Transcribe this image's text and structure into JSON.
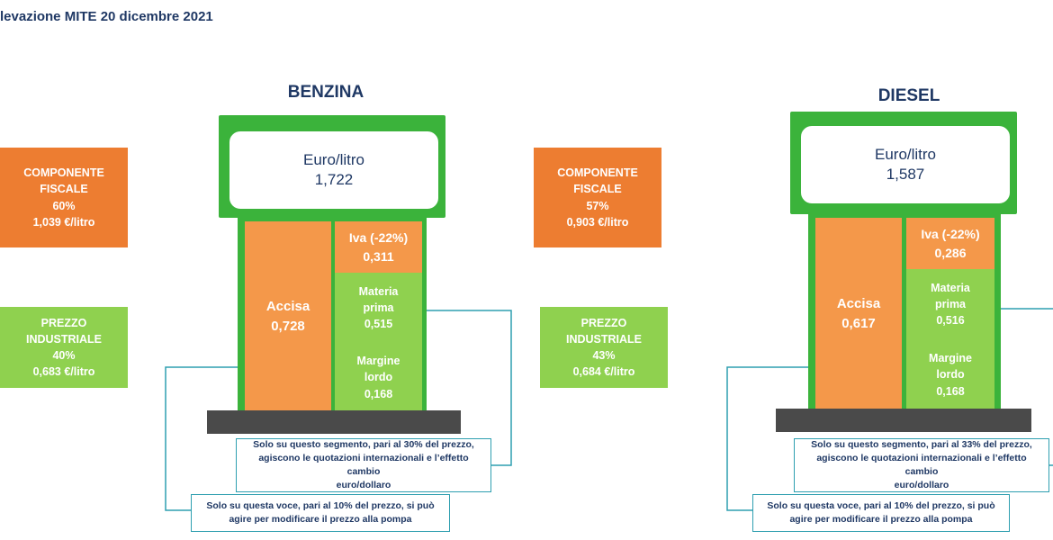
{
  "header": "levazione MITE 20 dicembre 2021",
  "benzina": {
    "title": "BENZINA",
    "componente_fiscale": {
      "line1": "COMPONENTE",
      "line2": "FISCALE",
      "percent": "60%",
      "value": "1,039 €/litro"
    },
    "prezzo_industriale": {
      "line1": "PREZZO",
      "line2": "INDUSTRIALE",
      "percent": "40%",
      "value": "0,683 €/litro"
    },
    "screen": {
      "unit": "Euro/litro",
      "price": "1,722"
    },
    "accisa": {
      "label": "Accisa",
      "value": "0,728"
    },
    "iva": {
      "label": "Iva (-22%)",
      "value": "0,311"
    },
    "materia_prima": {
      "line1": "Materia",
      "line2": "prima",
      "value": "0,515"
    },
    "margine_lordo": {
      "line1": "Margine",
      "line2": "lordo",
      "value": "0,168"
    },
    "note_quotazioni": {
      "line1": "Solo su questo segmento, pari al 30% del prezzo,",
      "line2": "agiscono le quotazioni internazionali e l’effetto cambio",
      "line3": "euro/dollaro"
    },
    "note_margine": {
      "line1": "Solo su questa voce, pari al 10% del prezzo, si può",
      "line2": "agire per modificare il prezzo alla pompa"
    }
  },
  "diesel": {
    "title": "DIESEL",
    "componente_fiscale": {
      "line1": "COMPONENTE",
      "line2": "FISCALE",
      "percent": "57%",
      "value": "0,903 €/litro"
    },
    "prezzo_industriale": {
      "line1": "PREZZO",
      "line2": "INDUSTRIALE",
      "percent": "43%",
      "value": "0,684 €/litro"
    },
    "screen": {
      "unit": "Euro/litro",
      "price": "1,587"
    },
    "accisa": {
      "label": "Accisa",
      "value": "0,617"
    },
    "iva": {
      "label": "Iva (-22%)",
      "value": "0,286"
    },
    "materia_prima": {
      "line1": "Materia",
      "line2": "prima",
      "value": "0,516"
    },
    "margine_lordo": {
      "line1": "Margine",
      "line2": "lordo",
      "value": "0,168"
    },
    "note_quotazioni": {
      "line1": "Solo su questo segmento, pari al 33% del prezzo,",
      "line2": "agiscono le quotazioni internazionali e l’effetto cambio",
      "line3": "euro/dollaro"
    },
    "note_margine": {
      "line1": "Solo su questa voce, pari al 10% del prezzo, si può",
      "line2": "agire per modificare il prezzo alla pompa"
    }
  },
  "colors": {
    "orange": "#ed7d31",
    "green": "#8fd14f",
    "pump_green": "#3bb33b",
    "base": "#4a4a4a",
    "connector": "#2e9fb0",
    "title": "#1f3864"
  }
}
